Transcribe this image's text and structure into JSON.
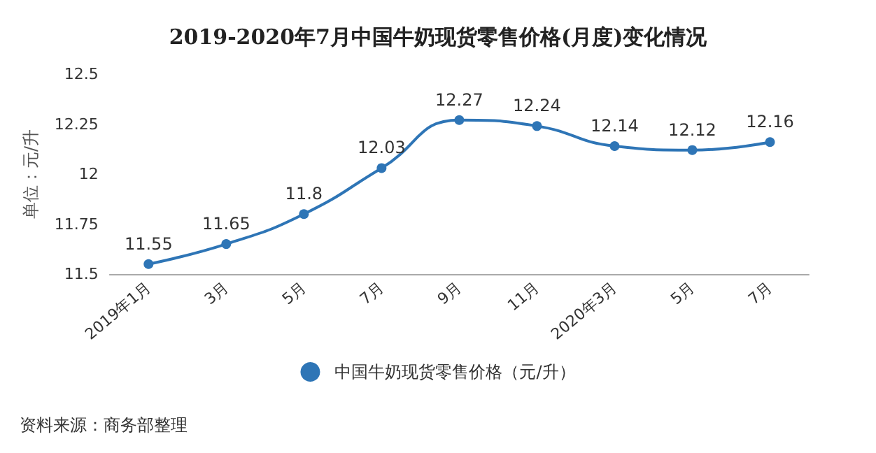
{
  "chart_data": {
    "type": "line",
    "title": "2019-2020年7月中国牛奶现货零售价格(月度)变化情况",
    "ylabel": "单位：元/升",
    "categories": [
      "2019年1月",
      "3月",
      "5月",
      "7月",
      "9月",
      "11月",
      "2020年3月",
      "5月",
      "7月"
    ],
    "series": [
      {
        "name": "中国牛奶现货零售价格（元/升）",
        "color": "#2e75b6",
        "values": [
          11.55,
          11.65,
          11.8,
          12.03,
          12.27,
          12.24,
          12.14,
          12.12,
          12.16
        ]
      }
    ],
    "ylim": [
      11.5,
      12.5
    ],
    "yticks": [
      11.5,
      11.75,
      12,
      12.25,
      12.5
    ],
    "grid": false,
    "legend": "bottom",
    "marker": "circle",
    "line_style": "solid",
    "data_labels": true,
    "annotations": [
      "资料来源：商务部整理"
    ]
  }
}
